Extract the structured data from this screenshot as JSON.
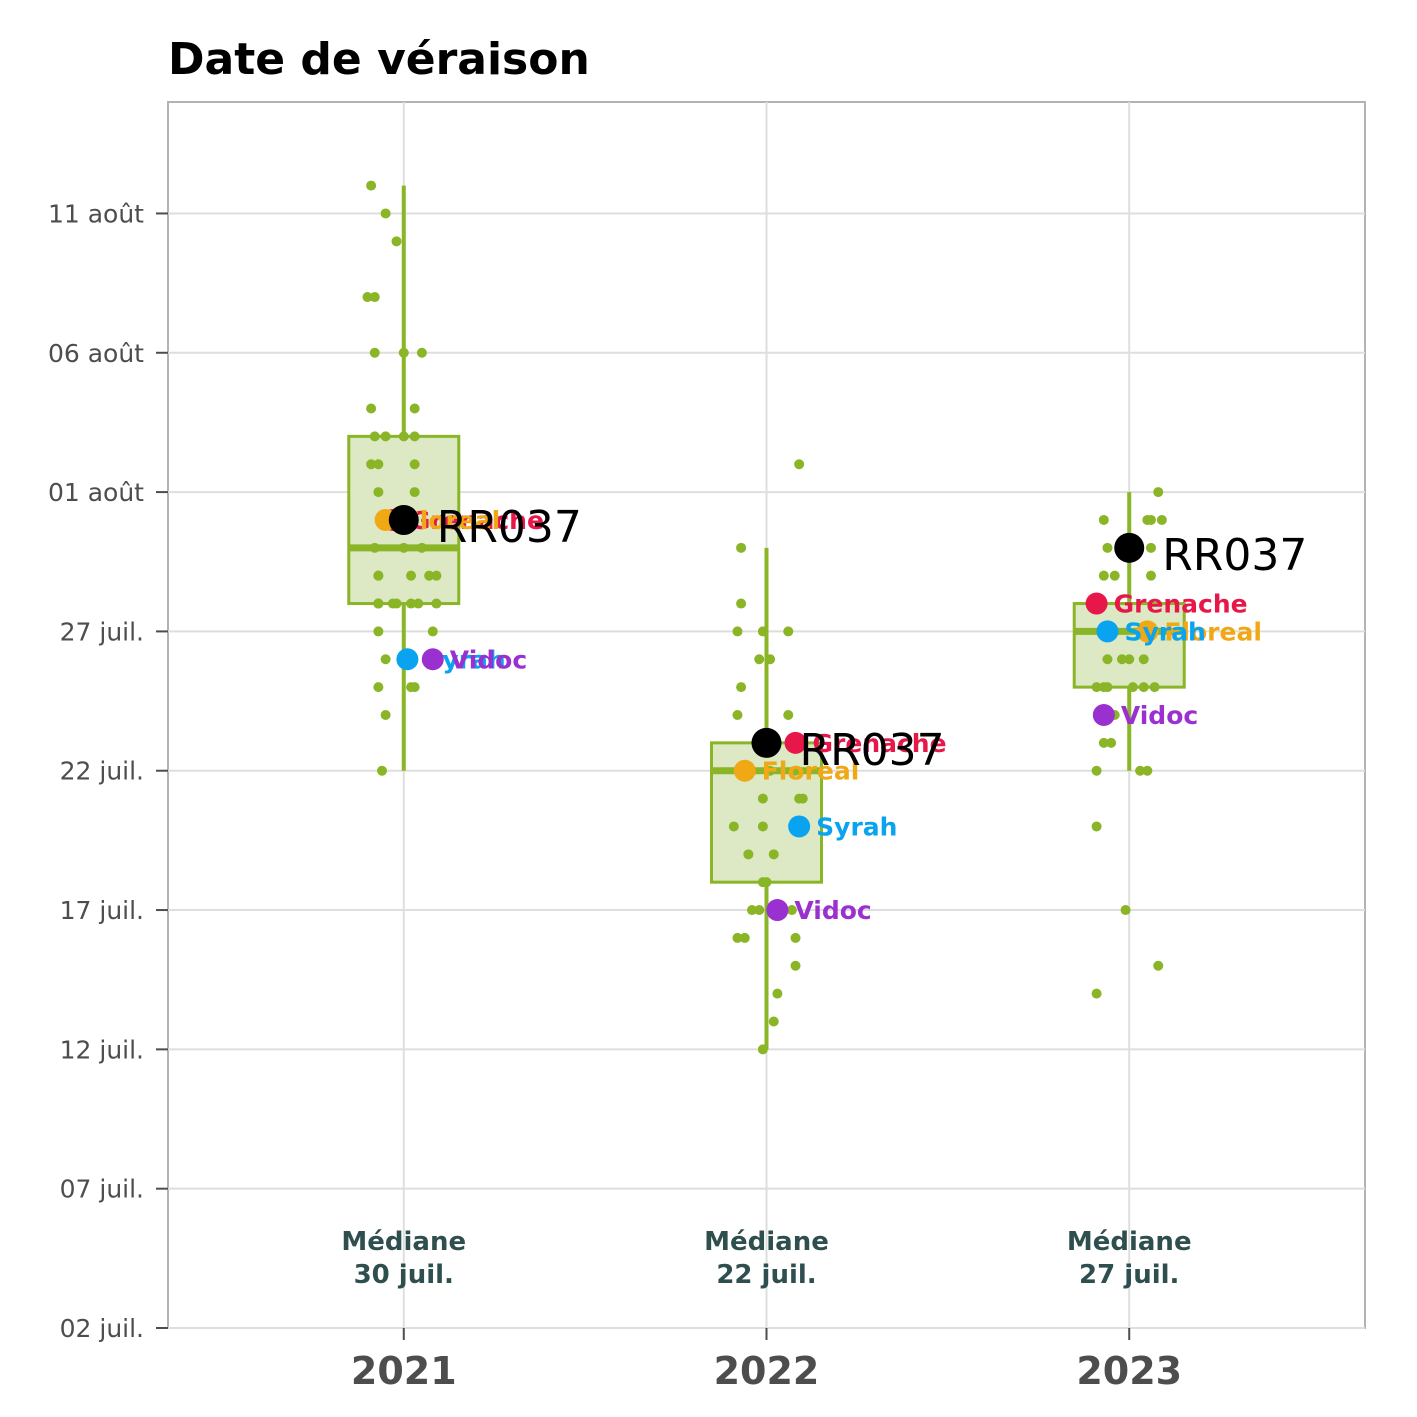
{
  "chart_data": {
    "type": "box",
    "title": "Date de véraison",
    "y_axis": {
      "ticks": [
        "02 juil.",
        "07 juil.",
        "12 juil.",
        "17 juil.",
        "22 juil.",
        "27 juil.",
        "01 août",
        "06 août",
        "11 août"
      ],
      "tick_values": [
        2,
        7,
        12,
        17,
        22,
        27,
        32,
        37,
        42
      ],
      "range": [
        2,
        46
      ],
      "unit": "day number from 1 July"
    },
    "categories": [
      "2021",
      "2022",
      "2023"
    ],
    "box_color": "#8ab526",
    "box_fill": "#dce9c4",
    "boxes": [
      {
        "year": "2021",
        "whisker_low": 22,
        "q1": 28,
        "median": 30,
        "q3": 34,
        "whisker_high": 43,
        "median_label_line1": "Médiane",
        "median_label_line2": "30 juil."
      },
      {
        "year": "2022",
        "whisker_low": 12,
        "q1": 18,
        "median": 22,
        "q3": 23,
        "whisker_high": 30,
        "median_label_line1": "Médiane",
        "median_label_line2": "22 juil."
      },
      {
        "year": "2023",
        "whisker_low": 22,
        "q1": 25,
        "median": 27,
        "q3": 28,
        "whisker_high": 32,
        "median_label_line1": "Médiane",
        "median_label_line2": "27 juil."
      }
    ],
    "jitter_points": [
      {
        "year": "2021",
        "points": [
          [
            -0.09,
            43
          ],
          [
            -0.05,
            42
          ],
          [
            -0.02,
            41
          ],
          [
            -0.1,
            39
          ],
          [
            -0.08,
            39
          ],
          [
            -0.08,
            37
          ],
          [
            0,
            37
          ],
          [
            0.05,
            37
          ],
          [
            -0.09,
            35
          ],
          [
            0.03,
            35
          ],
          [
            -0.08,
            34
          ],
          [
            -0.05,
            34
          ],
          [
            0,
            34
          ],
          [
            0.03,
            34
          ],
          [
            -0.09,
            33
          ],
          [
            -0.07,
            33
          ],
          [
            0.03,
            33
          ],
          [
            -0.07,
            32
          ],
          [
            0.03,
            32
          ],
          [
            -0.05,
            31
          ],
          [
            -0.08,
            30
          ],
          [
            0,
            30
          ],
          [
            0.05,
            30
          ],
          [
            -0.07,
            29
          ],
          [
            0.02,
            29
          ],
          [
            -0.07,
            29
          ],
          [
            -0.07,
            28
          ],
          [
            -0.03,
            28
          ],
          [
            -0.02,
            28
          ],
          [
            0.02,
            28
          ],
          [
            -0.07,
            28
          ],
          [
            0.04,
            28
          ],
          [
            0.07,
            29
          ],
          [
            0.09,
            29
          ],
          [
            -0.07,
            28
          ],
          [
            0.09,
            28
          ],
          [
            -0.07,
            27
          ],
          [
            0.08,
            27
          ],
          [
            -0.05,
            26
          ],
          [
            0.02,
            26
          ],
          [
            -0.07,
            25
          ],
          [
            0.02,
            25
          ],
          [
            0.03,
            25
          ],
          [
            -0.05,
            24
          ],
          [
            -0.06,
            22
          ]
        ]
      },
      {
        "year": "2022",
        "points": [
          [
            0.09,
            33
          ],
          [
            -0.07,
            30
          ],
          [
            -0.07,
            28
          ],
          [
            -0.08,
            27
          ],
          [
            -0.01,
            27
          ],
          [
            0.06,
            27
          ],
          [
            -0.02,
            26
          ],
          [
            0.01,
            26
          ],
          [
            -0.07,
            25
          ],
          [
            -0.08,
            24
          ],
          [
            0.06,
            24
          ],
          [
            -0.04,
            22
          ],
          [
            0.01,
            22
          ],
          [
            0.08,
            22
          ],
          [
            -0.01,
            21
          ],
          [
            0.1,
            21
          ],
          [
            0.09,
            21
          ],
          [
            0.08,
            20
          ],
          [
            -0.09,
            20
          ],
          [
            -0.01,
            20
          ],
          [
            -0.05,
            19
          ],
          [
            0.02,
            19
          ],
          [
            -0.01,
            18
          ],
          [
            0,
            18
          ],
          [
            -0.04,
            17
          ],
          [
            -0.02,
            17
          ],
          [
            0.07,
            17
          ],
          [
            -0.08,
            16
          ],
          [
            -0.06,
            16
          ],
          [
            0.08,
            16
          ],
          [
            0.08,
            15
          ],
          [
            0.03,
            14
          ],
          [
            0.02,
            13
          ],
          [
            -0.01,
            12
          ]
        ]
      },
      {
        "year": "2023",
        "points": [
          [
            0.08,
            32
          ],
          [
            -0.07,
            31
          ],
          [
            0.05,
            31
          ],
          [
            0.06,
            31
          ],
          [
            0.09,
            31
          ],
          [
            -0.06,
            30
          ],
          [
            0.06,
            30
          ],
          [
            -0.07,
            29
          ],
          [
            -0.04,
            29
          ],
          [
            0.06,
            29
          ],
          [
            -0.08,
            28
          ],
          [
            -0.04,
            27
          ],
          [
            -0.06,
            26
          ],
          [
            -0.02,
            26
          ],
          [
            0,
            26
          ],
          [
            0.04,
            26
          ],
          [
            -0.07,
            25
          ],
          [
            -0.09,
            25
          ],
          [
            -0.06,
            25
          ],
          [
            0.01,
            25
          ],
          [
            0.04,
            25
          ],
          [
            0.07,
            25
          ],
          [
            -0.04,
            24
          ],
          [
            -0.05,
            23
          ],
          [
            -0.07,
            23
          ],
          [
            0.03,
            22
          ],
          [
            0.05,
            22
          ],
          [
            -0.09,
            22
          ],
          [
            -0.09,
            20
          ],
          [
            -0.01,
            17
          ],
          [
            0.08,
            15
          ],
          [
            -0.09,
            14
          ]
        ]
      }
    ],
    "references": [
      {
        "name": "Grenache",
        "color": "#e8174a",
        "values": [
          {
            "year": "2021",
            "x_offset": -0.03,
            "y": 31
          },
          {
            "year": "2022",
            "x_offset": 0.08,
            "y": 23
          },
          {
            "year": "2023",
            "x_offset": -0.09,
            "y": 28
          }
        ]
      },
      {
        "name": "Floreal",
        "color": "#f0a815",
        "values": [
          {
            "year": "2021",
            "x_offset": -0.05,
            "y": 31
          },
          {
            "year": "2022",
            "x_offset": -0.06,
            "y": 22
          },
          {
            "year": "2023",
            "x_offset": 0.05,
            "y": 27
          }
        ]
      },
      {
        "name": "Syrah",
        "color": "#0aa3f0",
        "values": [
          {
            "year": "2021",
            "x_offset": 0.01,
            "y": 26
          },
          {
            "year": "2022",
            "x_offset": 0.09,
            "y": 20
          },
          {
            "year": "2023",
            "x_offset": -0.06,
            "y": 27
          }
        ]
      },
      {
        "name": "Vidoc",
        "color": "#9b30d0",
        "values": [
          {
            "year": "2021",
            "x_offset": 0.08,
            "y": 26
          },
          {
            "year": "2022",
            "x_offset": 0.03,
            "y": 17
          },
          {
            "year": "2023",
            "x_offset": -0.07,
            "y": 24
          }
        ]
      }
    ],
    "focus": {
      "name": "RR037",
      "color": "#000000",
      "values": [
        {
          "year": "2021",
          "x_offset": 0,
          "y": 31
        },
        {
          "year": "2022",
          "x_offset": 0,
          "y": 23
        },
        {
          "year": "2023",
          "x_offset": 0,
          "y": 30
        }
      ]
    }
  }
}
